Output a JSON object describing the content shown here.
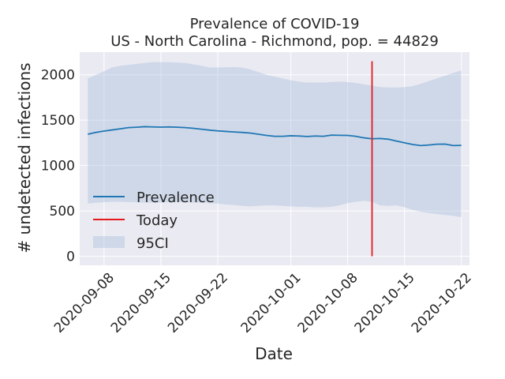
{
  "chart_data": {
    "type": "line",
    "title": "Prevalence of COVID-19",
    "subtitle": "US - North Carolina - Richmond, pop. = 44829",
    "xlabel": "Date",
    "ylabel": "# undetected infections",
    "xlim": [
      "2020-09-05",
      "2020-10-23"
    ],
    "ylim": [
      -100,
      2250
    ],
    "grid": true,
    "legend_position": "center-left",
    "x_ticks": [
      "2020-09-08",
      "2020-09-15",
      "2020-09-22",
      "2020-10-01",
      "2020-10-08",
      "2020-10-15",
      "2020-10-22"
    ],
    "y_ticks": [
      0,
      500,
      1000,
      1500,
      2000
    ],
    "dates": [
      "2020-09-06",
      "2020-09-07",
      "2020-09-08",
      "2020-09-09",
      "2020-09-10",
      "2020-09-11",
      "2020-09-12",
      "2020-09-13",
      "2020-09-14",
      "2020-09-15",
      "2020-09-16",
      "2020-09-17",
      "2020-09-18",
      "2020-09-19",
      "2020-09-20",
      "2020-09-21",
      "2020-09-22",
      "2020-09-23",
      "2020-09-24",
      "2020-09-25",
      "2020-09-26",
      "2020-09-27",
      "2020-09-28",
      "2020-09-29",
      "2020-09-30",
      "2020-10-01",
      "2020-10-02",
      "2020-10-03",
      "2020-10-04",
      "2020-10-05",
      "2020-10-06",
      "2020-10-07",
      "2020-10-08",
      "2020-10-09",
      "2020-10-10",
      "2020-10-11",
      "2020-10-12",
      "2020-10-13",
      "2020-10-14",
      "2020-10-15",
      "2020-10-16",
      "2020-10-17",
      "2020-10-18",
      "2020-10-19",
      "2020-10-20",
      "2020-10-21",
      "2020-10-22"
    ],
    "series": [
      {
        "name": "Prevalence",
        "color": "#1f77b4",
        "values": [
          1345,
          1365,
          1380,
          1392,
          1405,
          1418,
          1422,
          1428,
          1425,
          1423,
          1425,
          1422,
          1418,
          1410,
          1400,
          1390,
          1382,
          1376,
          1370,
          1365,
          1358,
          1345,
          1332,
          1322,
          1322,
          1328,
          1325,
          1320,
          1325,
          1322,
          1335,
          1333,
          1332,
          1322,
          1305,
          1295,
          1298,
          1290,
          1270,
          1250,
          1232,
          1220,
          1226,
          1235,
          1236,
          1220,
          1222
        ]
      }
    ],
    "ci": {
      "name": "95CI",
      "color": "#b0c4de",
      "lower": [
        580,
        590,
        595,
        600,
        600,
        595,
        595,
        590,
        590,
        590,
        595,
        595,
        595,
        590,
        590,
        585,
        580,
        570,
        565,
        555,
        550,
        555,
        560,
        560,
        555,
        550,
        545,
        545,
        540,
        540,
        545,
        560,
        585,
        600,
        610,
        600,
        560,
        555,
        560,
        540,
        510,
        490,
        475,
        465,
        455,
        445,
        430
      ],
      "upper": [
        1960,
        2000,
        2040,
        2080,
        2100,
        2110,
        2120,
        2130,
        2140,
        2140,
        2140,
        2135,
        2130,
        2115,
        2100,
        2080,
        2080,
        2085,
        2085,
        2080,
        2060,
        2030,
        2000,
        1980,
        1960,
        1940,
        1925,
        1915,
        1915,
        1915,
        1920,
        1925,
        1920,
        1910,
        1895,
        1880,
        1865,
        1860,
        1860,
        1865,
        1875,
        1900,
        1930,
        1960,
        1990,
        2020,
        2050
      ]
    },
    "today": {
      "name": "Today",
      "date": "2020-10-11",
      "color": "#e41a1c",
      "range": [
        0,
        2150
      ]
    }
  }
}
